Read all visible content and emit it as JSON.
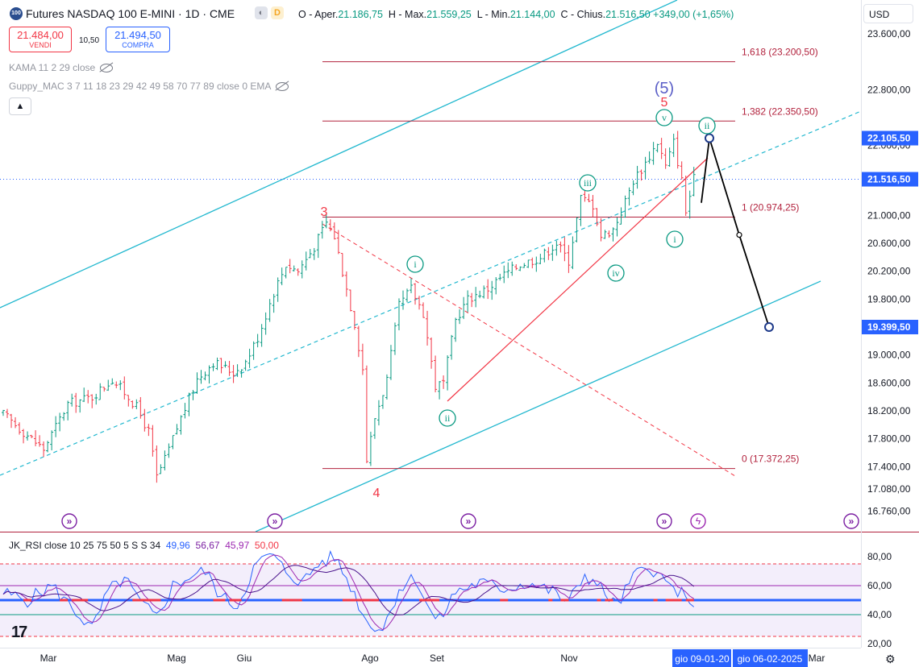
{
  "header": {
    "symbol_badge": "100",
    "title": "Futures NASDAQ 100 E-MINI · 1D · CME",
    "chip_label": "D",
    "ohlc": {
      "open_label": "O - Aper.",
      "open": "21.186,75",
      "high_label": "H - Max.",
      "high": "21.559,25",
      "low_label": "L - Min.",
      "low": "21.144,00",
      "close_label": "C - Chius.",
      "close": "21.516,50",
      "change": "+349,00 (+1,65%)"
    }
  },
  "trade": {
    "sell_price": "21.484,00",
    "sell_label": "VENDI",
    "spread": "10,50",
    "buy_price": "21.494,50",
    "buy_label": "COMPRA"
  },
  "indicators": {
    "kama": "KAMA 11 2 29 close",
    "guppy": "Guppy_MAC 3 7 11 18 23 29 42 49 58 70 77 89 close 0 EMA",
    "collapse_icon": "chevron-up-icon"
  },
  "currency": "USD",
  "rsi": {
    "name": "JK_RSI",
    "params": "close 10 25 75 50 5 S S 34",
    "v1": "49,96",
    "v2": "56,67",
    "v3": "45,97",
    "v4": "50,00"
  },
  "bottom": {
    "settings_icon": "gear-icon"
  },
  "chart_data": [
    {
      "type": "line",
      "subtype": "ohlc-bars",
      "instrument": "Futures NASDAQ 100 E-MINI",
      "timeframe": "1D",
      "x_labels": [
        "Mar",
        "Mag",
        "Giu",
        "Ago",
        "Set",
        "Nov",
        "Mar"
      ],
      "crosshair_dates": [
        "gio 09-01-20",
        "gio 06-02-2025"
      ],
      "y_ticks": [
        "23.600,00",
        "22.800,00",
        "22.000,00",
        "21.000,00",
        "20.600,00",
        "20.200,00",
        "19.800,00",
        "19.000,00",
        "18.600,00",
        "18.200,00",
        "17.800,00",
        "17.400,00",
        "17.080,00",
        "16.760,00"
      ],
      "y_tick_values": [
        23600,
        22800,
        22000,
        21000,
        20600,
        20200,
        19800,
        19000,
        18600,
        18200,
        17800,
        17400,
        17080,
        16760
      ],
      "ylim": [
        16680,
        24000
      ],
      "price_labels": [
        {
          "text": "22.105,50",
          "value": 22105.5,
          "color": "#2962ff"
        },
        {
          "text": "21.516,50",
          "value": 21516.5,
          "color": "#2962ff"
        },
        {
          "text": "19.399,50",
          "value": 19399.5,
          "color": "#2962ff"
        }
      ],
      "fib_levels": [
        {
          "label": "1,618 (23.200,50)",
          "value": 23200.5
        },
        {
          "label": "1,382 (22.350,50)",
          "value": 22350.5
        },
        {
          "label": "1 (20.974,25)",
          "value": 20974.25
        },
        {
          "label": "0 (17.372,25)",
          "value": 17372.25
        }
      ],
      "close_path": [
        [
          0,
          18150
        ],
        [
          5,
          17900
        ],
        [
          10,
          17650
        ],
        [
          16,
          18300
        ],
        [
          22,
          18400
        ],
        [
          27,
          18650
        ],
        [
          31,
          18400
        ],
        [
          33,
          18250
        ],
        [
          36,
          17900
        ],
        [
          38,
          17250
        ],
        [
          40,
          17500
        ],
        [
          44,
          18100
        ],
        [
          48,
          18650
        ],
        [
          52,
          18900
        ],
        [
          57,
          18750
        ],
        [
          60,
          18900
        ],
        [
          63,
          19250
        ],
        [
          67,
          19900
        ],
        [
          70,
          20300
        ],
        [
          73,
          20200
        ],
        [
          77,
          20550
        ],
        [
          80,
          20900
        ],
        [
          82,
          20700
        ],
        [
          84,
          20200
        ],
        [
          87,
          19450
        ],
        [
          89,
          18800
        ],
        [
          90,
          17500
        ],
        [
          92,
          18100
        ],
        [
          95,
          18650
        ],
        [
          98,
          19700
        ],
        [
          101,
          19950
        ],
        [
          104,
          19600
        ],
        [
          107,
          18550
        ],
        [
          109,
          18600
        ],
        [
          112,
          19500
        ],
        [
          115,
          19800
        ],
        [
          120,
          19950
        ],
        [
          124,
          20150
        ],
        [
          128,
          20300
        ],
        [
          133,
          20400
        ],
        [
          137,
          20600
        ],
        [
          140,
          20350
        ],
        [
          143,
          21250
        ],
        [
          146,
          21150
        ],
        [
          148,
          20700
        ],
        [
          151,
          20800
        ],
        [
          153,
          21050
        ],
        [
          156,
          21500
        ],
        [
          159,
          21750
        ],
        [
          162,
          22050
        ],
        [
          164,
          21700
        ],
        [
          166,
          22050
        ],
        [
          168,
          21500
        ],
        [
          169,
          21050
        ],
        [
          171,
          21516
        ]
      ],
      "bars_count": 172,
      "series": [
        {
          "name": "KAMA 11 2 29 close"
        },
        {
          "name": "Guppy_MAC 3 7 11 18 23 29 42 49 58 70 77 89 close 0 EMA"
        }
      ],
      "annotations": [
        {
          "text": "3",
          "color": "#f23645"
        },
        {
          "text": "4",
          "color": "#f23645"
        },
        {
          "text": "5",
          "color": "#f23645"
        },
        {
          "text": "(5)",
          "color": "#5b5fc7"
        },
        {
          "text": "i",
          "color": "#089981"
        },
        {
          "text": "ii",
          "color": "#089981"
        },
        {
          "text": "iii",
          "color": "#089981"
        },
        {
          "text": "iv",
          "color": "#089981"
        },
        {
          "text": "v",
          "color": "#089981"
        },
        {
          "text": "i",
          "color": "#089981"
        },
        {
          "text": "ii",
          "color": "#089981"
        }
      ],
      "projection": [
        {
          "value": 21180
        },
        {
          "value": 22105.5
        },
        {
          "value": 20720
        },
        {
          "value": 19399.5
        }
      ],
      "colors": {
        "up": "#089981",
        "down": "#f23645",
        "channel": "#22b8cf",
        "fib": "#b2223d",
        "projection": "#000000",
        "label_bg": "#2962ff"
      },
      "grid": false
    },
    {
      "type": "line",
      "title": "JK_RSI",
      "y_ticks": [
        "80,00",
        "60,00",
        "40,00",
        "20,00"
      ],
      "y_tick_values": [
        80,
        60,
        40,
        20
      ],
      "ylim": [
        17,
        88
      ],
      "levels": [
        75,
        60,
        50,
        40,
        25
      ],
      "series": [
        {
          "name": "RSI",
          "color": "#2962ff"
        },
        {
          "name": "RSI MA",
          "color": "#7b1fa2"
        },
        {
          "name": "Signal",
          "color": "#9c27b0"
        },
        {
          "name": "Midline",
          "color": "#f23645"
        }
      ],
      "rsi_path": [
        [
          0,
          55
        ],
        [
          6,
          50
        ],
        [
          12,
          60
        ],
        [
          18,
          42
        ],
        [
          22,
          30
        ],
        [
          26,
          56
        ],
        [
          30,
          65
        ],
        [
          34,
          48
        ],
        [
          38,
          38
        ],
        [
          42,
          60
        ],
        [
          46,
          66
        ],
        [
          50,
          70
        ],
        [
          54,
          52
        ],
        [
          58,
          46
        ],
        [
          62,
          72
        ],
        [
          66,
          82
        ],
        [
          70,
          70
        ],
        [
          74,
          62
        ],
        [
          78,
          75
        ],
        [
          82,
          80
        ],
        [
          86,
          60
        ],
        [
          90,
          35
        ],
        [
          94,
          30
        ],
        [
          98,
          58
        ],
        [
          102,
          66
        ],
        [
          106,
          40
        ],
        [
          108,
          36
        ],
        [
          112,
          56
        ],
        [
          118,
          62
        ],
        [
          124,
          58
        ],
        [
          130,
          62
        ],
        [
          136,
          56
        ],
        [
          140,
          48
        ],
        [
          144,
          68
        ],
        [
          148,
          58
        ],
        [
          152,
          46
        ],
        [
          156,
          66
        ],
        [
          160,
          74
        ],
        [
          164,
          62
        ],
        [
          168,
          54
        ],
        [
          170,
          44
        ],
        [
          171,
          50
        ]
      ]
    }
  ]
}
